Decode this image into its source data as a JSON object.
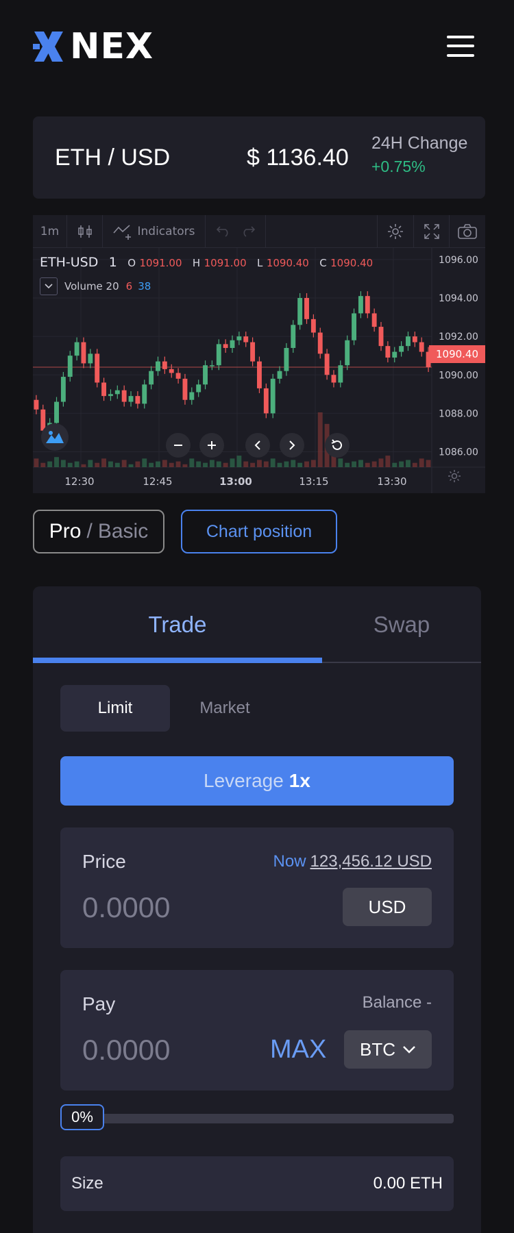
{
  "brand": {
    "name": "NEX",
    "accent": "#4a82ee"
  },
  "header": {
    "menu_icon": "hamburger-icon"
  },
  "ticker": {
    "pair": "ETH / USD",
    "price": "$ 1136.40",
    "change_label": "24H Change",
    "change_value": "+0.75%",
    "up_color": "#2ebd85"
  },
  "chart": {
    "toolbar": {
      "interval": "1m",
      "indicators": "Indicators"
    },
    "symbol": "ETH-USD",
    "interval_num": "1",
    "ohlc": {
      "o_label": "O",
      "o": "1091.00",
      "h_label": "H",
      "h": "1091.00",
      "l_label": "L",
      "l": "1090.40",
      "c_label": "C",
      "c": "1090.40"
    },
    "volume_label": "Volume 20",
    "volume_a": "6",
    "volume_b": "38",
    "last_price": "1090.40",
    "down_color": "#f05a5a",
    "up_color": "#4caf7d"
  },
  "chart_data": {
    "type": "candlestick",
    "y_ticks": [
      "1096.00",
      "1094.00",
      "1092.00",
      "1090.00",
      "1088.00",
      "1086.00"
    ],
    "x_ticks": [
      "12:30",
      "12:45",
      "13:00",
      "13:15",
      "13:30"
    ],
    "ylim": [
      1085.2,
      1096.6
    ],
    "closes": [
      1088.2,
      1087.1,
      1087.5,
      1088.6,
      1089.9,
      1091.0,
      1091.7,
      1090.6,
      1091.1,
      1089.6,
      1088.9,
      1089.0,
      1089.2,
      1088.6,
      1088.9,
      1088.5,
      1089.5,
      1090.2,
      1090.7,
      1090.3,
      1090.1,
      1089.8,
      1088.7,
      1089.1,
      1089.5,
      1090.5,
      1090.5,
      1091.6,
      1091.4,
      1091.8,
      1092.0,
      1091.7,
      1090.7,
      1089.3,
      1088.0,
      1089.8,
      1090.2,
      1091.4,
      1092.6,
      1094.0,
      1092.9,
      1092.2,
      1091.1,
      1090.0,
      1089.6,
      1090.5,
      1091.8,
      1093.2,
      1094.1,
      1093.2,
      1092.5,
      1091.5,
      1090.9,
      1091.2,
      1091.5,
      1092.0,
      1091.7,
      1091.2,
      1090.4
    ],
    "volumes": [
      6,
      3,
      4,
      7,
      5,
      3,
      4,
      2,
      5,
      3,
      6,
      4,
      3,
      5,
      2,
      4,
      6,
      3,
      4,
      5,
      3,
      4,
      2,
      6,
      4,
      3,
      5,
      4,
      3,
      6,
      8,
      4,
      3,
      5,
      4,
      6,
      3,
      4,
      5,
      3,
      4,
      5,
      38,
      30,
      20,
      6,
      3,
      4,
      5,
      3,
      4,
      6,
      8,
      3,
      4,
      5,
      3,
      6,
      5
    ]
  },
  "toggle": {
    "pro": "Pro",
    "sep": "/",
    "basic": "Basic",
    "chart_position": "Chart position"
  },
  "trade": {
    "tabs": {
      "trade": "Trade",
      "swap": "Swap"
    },
    "order_types": {
      "limit": "Limit",
      "market": "Market"
    },
    "leverage_label": "Leverage",
    "leverage_value": "1x",
    "price": {
      "label": "Price",
      "now_label": "Now",
      "now_value": "123,456.12 USD",
      "placeholder": "0.0000",
      "unit": "USD"
    },
    "pay": {
      "label": "Pay",
      "balance": "Balance -",
      "placeholder": "0.0000",
      "max": "MAX",
      "token": "BTC"
    },
    "slider_value": "0%",
    "size": {
      "label": "Size",
      "value": "0.00 ETH"
    }
  }
}
